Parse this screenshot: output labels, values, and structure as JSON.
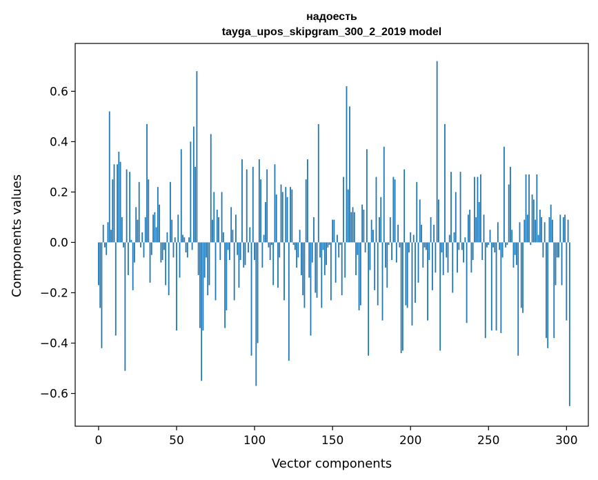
{
  "chart_data": {
    "type": "bar",
    "title_line1": "надоесть",
    "title_line2": "tayga_upos_skipgram_300_2_2019 model",
    "xlabel": "Vector components",
    "ylabel": "Components values",
    "xlim": [
      -15,
      314
    ],
    "ylim": [
      -0.73,
      0.79
    ],
    "xticks": [
      0,
      50,
      100,
      150,
      200,
      250,
      300
    ],
    "xtick_labels": [
      "0",
      "50",
      "100",
      "150",
      "200",
      "250",
      "300"
    ],
    "yticks": [
      -0.6,
      -0.4,
      -0.2,
      0.0,
      0.2,
      0.4,
      0.6
    ],
    "ytick_labels": [
      "−0.6",
      "−0.4",
      "−0.2",
      "0.0",
      "0.2",
      "0.4",
      "0.6"
    ],
    "bar_color": "#1f77b4",
    "grid": false,
    "values": [
      -0.17,
      -0.26,
      -0.42,
      0.07,
      -0.02,
      -0.05,
      0.08,
      0.52,
      0.05,
      0.25,
      0.31,
      -0.37,
      0.31,
      0.36,
      0.32,
      0.1,
      -0.02,
      -0.51,
      0.29,
      -0.13,
      0.28,
      0.01,
      -0.19,
      -0.08,
      0.14,
      0.09,
      0.24,
      -0.02,
      0.04,
      -0.06,
      0.1,
      0.47,
      0.25,
      -0.16,
      -0.05,
      0.11,
      0.12,
      0.06,
      0.22,
      0.15,
      -0.08,
      -0.07,
      -0.03,
      -0.17,
      0.04,
      -0.21,
      0.24,
      0.09,
      -0.06,
      0.02,
      -0.35,
      0.11,
      -0.14,
      0.37,
      0.03,
      0.02,
      -0.04,
      -0.06,
      0.02,
      0.4,
      -0.03,
      0.46,
      0.3,
      0.68,
      -0.13,
      -0.34,
      -0.55,
      -0.35,
      -0.14,
      -0.06,
      -0.21,
      -0.17,
      0.43,
      0.09,
      0.2,
      -0.23,
      0.13,
      0.1,
      -0.07,
      0.2,
      0.04,
      -0.34,
      -0.27,
      -0.03,
      -0.07,
      0.14,
      0.05,
      -0.23,
      0.11,
      -0.05,
      -0.18,
      -0.07,
      0.33,
      -0.1,
      -0.09,
      0.29,
      -0.04,
      0.06,
      -0.45,
      0.3,
      -0.07,
      -0.57,
      -0.4,
      0.33,
      0.25,
      -0.1,
      0.03,
      0.16,
      0.29,
      -0.02,
      -0.07,
      -0.01,
      -0.17,
      0.31,
      0.19,
      -0.18,
      -0.06,
      0.23,
      0.2,
      -0.23,
      0.22,
      0.18,
      -0.47,
      0.22,
      0.21,
      -0.01,
      -0.03,
      -0.1,
      -0.06,
      0.05,
      -0.13,
      -0.21,
      -0.26,
      0.25,
      0.33,
      -0.14,
      -0.37,
      -0.08,
      0.1,
      -0.2,
      -0.22,
      0.47,
      -0.06,
      -0.26,
      -0.03,
      -0.13,
      -0.09,
      -0.02,
      -0.01,
      -0.23,
      0.09,
      0.09,
      -0.16,
      0.03,
      -0.06,
      -0.01,
      -0.21,
      0.26,
      -0.14,
      0.62,
      0.21,
      0.54,
      0.12,
      0.14,
      0.12,
      -0.13,
      -0.05,
      -0.27,
      -0.25,
      0.15,
      0.13,
      -0.04,
      0.37,
      -0.45,
      -0.11,
      0.09,
      0.05,
      -0.19,
      0.26,
      -0.25,
      0.1,
      0.18,
      -0.31,
      0.38,
      -0.1,
      -0.18,
      -0.01,
      0.1,
      -0.07,
      0.26,
      0.25,
      -0.08,
      0.07,
      -0.02,
      -0.44,
      -0.43,
      0.29,
      -0.25,
      -0.26,
      -0.04,
      0.04,
      -0.33,
      0.03,
      -0.24,
      0.24,
      -0.16,
      0.17,
      0.07,
      -0.1,
      -0.02,
      -0.03,
      -0.31,
      -0.07,
      0.1,
      -0.19,
      0.07,
      -0.12,
      0.72,
      0.17,
      -0.43,
      -0.04,
      -0.13,
      0.47,
      -0.06,
      -0.12,
      0.03,
      0.28,
      -0.2,
      0.04,
      0.2,
      -0.12,
      -0.03,
      0.28,
      -0.03,
      -0.08,
      0.02,
      -0.32,
      0.11,
      0.13,
      -0.12,
      -0.07,
      0.26,
      0.1,
      0.26,
      0.16,
      0.27,
      -0.07,
      0.11,
      -0.38,
      -0.02,
      -0.01,
      0.05,
      -0.35,
      -0.02,
      -0.04,
      -0.35,
      0.08,
      -0.03,
      -0.36,
      -0.06,
      0.38,
      -0.02,
      -0.01,
      0.23,
      0.3,
      0.05,
      -0.1,
      -0.05,
      -0.09,
      -0.45,
      0.08,
      -0.26,
      -0.28,
      0.09,
      0.27,
      0.11,
      0.27,
      -0.01,
      0.19,
      0.17,
      0.09,
      0.27,
      0.03,
      0.13,
      0.1,
      -0.06,
      0.08,
      -0.38,
      -0.42,
      0.1,
      0.15,
      0.09,
      -0.38,
      -0.17,
      -0.06,
      -0.06,
      0.11,
      -0.17,
      0.1,
      0.11,
      -0.31,
      0.09,
      -0.65
    ]
  }
}
